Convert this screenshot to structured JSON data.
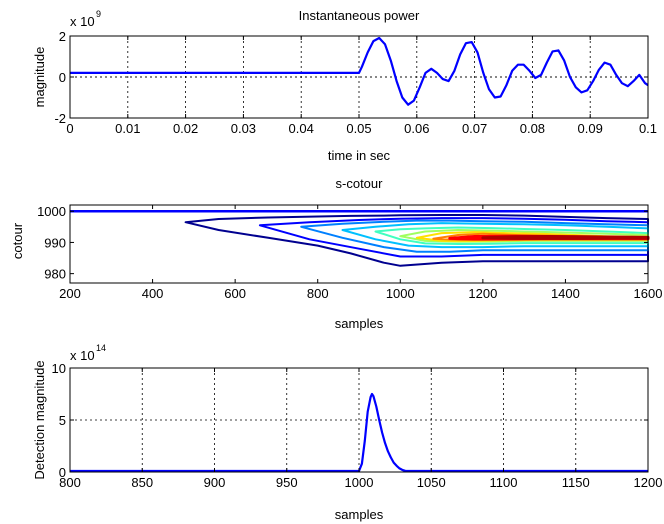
{
  "colors": {
    "signal": "#0000ff",
    "grid": "#000000",
    "axes": "#000000",
    "contour_levels": [
      "#00008f",
      "#0000ff",
      "#0080ff",
      "#00c0ff",
      "#40ffc0",
      "#a0ff60",
      "#ffe000",
      "#ff8000",
      "#ff0000",
      "#b00000"
    ]
  },
  "chart_data": [
    {
      "type": "line",
      "title": "Instantaneous power",
      "xlabel": "time in sec",
      "ylabel": "magnitude",
      "multiplier": {
        "base": "x 10",
        "exp": "9"
      },
      "xlim": [
        0,
        0.1
      ],
      "ylim": [
        -2,
        2
      ],
      "xticks": [
        "0",
        "0.01",
        "0.02",
        "0.03",
        "0.04",
        "0.05",
        "0.06",
        "0.07",
        "0.08",
        "0.09",
        "0.1"
      ],
      "yticks": [
        "-2",
        "0",
        "2"
      ],
      "grid": true,
      "reference_line": 0,
      "series": [
        {
          "x": [
            0,
            0.05,
            0.0505,
            0.0515,
            0.0525,
            0.0535,
            0.0545,
            0.0555,
            0.0565,
            0.0575,
            0.0585,
            0.0595,
            0.0605,
            0.0615,
            0.0625,
            0.0635,
            0.0645,
            0.0655,
            0.0665,
            0.0675,
            0.0685,
            0.0695,
            0.0705,
            0.0715,
            0.0725,
            0.0735,
            0.0745,
            0.0755,
            0.0765,
            0.0775,
            0.0785,
            0.0795,
            0.0805,
            0.0815,
            0.0825,
            0.0835,
            0.0845,
            0.0855,
            0.0865,
            0.0875,
            0.0885,
            0.0895,
            0.0905,
            0.0915,
            0.0925,
            0.0935,
            0.0945,
            0.0955,
            0.0965,
            0.0975,
            0.0985,
            0.0995,
            0.1
          ],
          "y": [
            0.2,
            0.2,
            0.5,
            1.2,
            1.75,
            1.9,
            1.6,
            0.8,
            -0.2,
            -1.0,
            -1.35,
            -1.15,
            -0.5,
            0.2,
            0.4,
            0.2,
            -0.1,
            -0.2,
            0.3,
            1.1,
            1.65,
            1.7,
            1.2,
            0.2,
            -0.6,
            -1.0,
            -0.95,
            -0.4,
            0.3,
            0.6,
            0.6,
            0.3,
            -0.05,
            0.1,
            0.7,
            1.25,
            1.3,
            0.8,
            0.0,
            -0.5,
            -0.75,
            -0.65,
            -0.2,
            0.35,
            0.7,
            0.6,
            0.1,
            -0.3,
            -0.45,
            -0.2,
            0.1,
            -0.3,
            -0.4
          ]
        }
      ]
    },
    {
      "type": "heatmap",
      "title": "s-cotour",
      "xlabel": "samples",
      "ylabel": "cotour",
      "xlim": [
        200,
        1600
      ],
      "ylim": [
        977,
        1002
      ],
      "xticks": [
        "200",
        "400",
        "600",
        "800",
        "1000",
        "1200",
        "1400",
        "1600"
      ],
      "yticks": [
        "980",
        "990",
        "1000"
      ],
      "grid": false,
      "top_line": 1000,
      "contours": [
        {
          "level": 1,
          "x": [
            480,
            560,
            680,
            800,
            880,
            960,
            1000,
            1100,
            1200,
            1300,
            1400,
            1500,
            1600
          ],
          "y_upper": [
            996.5,
            997.5,
            998,
            998.3,
            998.5,
            998.6,
            998.7,
            998.8,
            998.8,
            998.6,
            998.2,
            997.8,
            997.5
          ],
          "y_lower": [
            996.5,
            994,
            991.5,
            989,
            986.5,
            983.5,
            982.5,
            983.5,
            984,
            984,
            984,
            984,
            984
          ]
        },
        {
          "level": 2,
          "x": [
            660,
            780,
            900,
            1000,
            1100,
            1200,
            1300,
            1400,
            1500,
            1600
          ],
          "y_upper": [
            995.5,
            996.5,
            997.2,
            997.6,
            997.8,
            997.8,
            997.6,
            997.3,
            996.8,
            996.5
          ],
          "y_lower": [
            995.5,
            991,
            988,
            985.5,
            985.5,
            986,
            986,
            986,
            986,
            986
          ]
        },
        {
          "level": 3,
          "x": [
            760,
            860,
            960,
            1040,
            1120,
            1200,
            1300,
            1400,
            1500,
            1600
          ],
          "y_upper": [
            995,
            996,
            996.6,
            997,
            997,
            996.8,
            996.6,
            996.2,
            995.8,
            995.5
          ],
          "y_lower": [
            995,
            991.5,
            988.5,
            987,
            987,
            987.5,
            987.5,
            987.5,
            987.5,
            987.5
          ]
        },
        {
          "level": 4,
          "x": [
            860,
            940,
            1020,
            1100,
            1200,
            1300,
            1400,
            1500,
            1600
          ],
          "y_upper": [
            994,
            995,
            995.8,
            996.2,
            996,
            995.8,
            995.5,
            995,
            994.5
          ],
          "y_lower": [
            994,
            991,
            989,
            988.5,
            988.5,
            988.8,
            988.8,
            988.8,
            988.8
          ]
        },
        {
          "level": 5,
          "x": [
            940,
            1000,
            1060,
            1140,
            1220,
            1300,
            1400,
            1500,
            1600
          ],
          "y_upper": [
            993.5,
            994.2,
            994.5,
            994.8,
            994.6,
            994.3,
            994,
            993.5,
            993
          ],
          "y_lower": [
            993.5,
            991,
            989.7,
            989.5,
            989.6,
            989.8,
            989.8,
            989.8,
            989.8
          ]
        },
        {
          "level": 6,
          "x": [
            1000,
            1060,
            1140,
            1220,
            1300,
            1400,
            1500,
            1600
          ],
          "y_upper": [
            992,
            993.5,
            994,
            993.8,
            993.5,
            993.2,
            992.8,
            992.4
          ],
          "y_lower": [
            992,
            990.5,
            990.2,
            990.3,
            990.5,
            990.5,
            990.5,
            990.5
          ]
        },
        {
          "level": 7,
          "x": [
            1040,
            1100,
            1180,
            1260,
            1340,
            1420,
            1500,
            1600
          ],
          "y_upper": [
            991.5,
            993,
            993.3,
            993,
            992.8,
            992.4,
            992,
            991.8
          ],
          "y_lower": [
            991.5,
            990.5,
            990.5,
            990.7,
            990.8,
            990.8,
            990.8,
            990.8
          ]
        },
        {
          "level": 8,
          "x": [
            1080,
            1140,
            1200,
            1280,
            1360,
            1440,
            1520,
            1600
          ],
          "y_upper": [
            991.2,
            992.4,
            992.8,
            992.4,
            992.2,
            992,
            991.8,
            991.6
          ],
          "y_lower": [
            991.2,
            990.8,
            990.8,
            990.9,
            991,
            991,
            991,
            991
          ]
        },
        {
          "level": 9,
          "x": [
            1120,
            1180,
            1260,
            1340,
            1420,
            1500,
            1600
          ],
          "y_upper": [
            991.3,
            991.9,
            992,
            991.9,
            991.7,
            991.6,
            991.5
          ],
          "y_lower": [
            991.3,
            991.1,
            991.1,
            991.2,
            991.2,
            991.2,
            991.2
          ]
        },
        {
          "level": 10,
          "x": [
            1200,
            1280,
            1360,
            1440,
            1520,
            1600
          ],
          "y_upper": [
            991.5,
            991.8,
            991.9,
            991.8,
            991.7,
            991.6
          ],
          "y_lower": [
            991.5,
            991.3,
            991.3,
            991.3,
            991.4,
            991.4
          ]
        }
      ]
    },
    {
      "type": "line",
      "title": "",
      "xlabel": "samples",
      "ylabel": "Detection magnitude",
      "multiplier": {
        "base": "x 10",
        "exp": "14"
      },
      "xlim": [
        800,
        1200
      ],
      "ylim": [
        0,
        10
      ],
      "xticks": [
        "800",
        "850",
        "900",
        "950",
        "1000",
        "1050",
        "1100",
        "1150",
        "1200"
      ],
      "yticks": [
        "0",
        "5",
        "10"
      ],
      "grid": true,
      "series": [
        {
          "x": [
            800,
            1000,
            1002,
            1004,
            1006,
            1008,
            1009,
            1010,
            1012,
            1014,
            1016,
            1018,
            1020,
            1022,
            1024,
            1026,
            1028,
            1030,
            1032,
            1034,
            1200
          ],
          "y": [
            0.1,
            0.1,
            0.8,
            3.0,
            5.8,
            7.2,
            7.5,
            7.3,
            6.3,
            5.0,
            3.8,
            2.8,
            2.0,
            1.4,
            0.9,
            0.6,
            0.35,
            0.2,
            0.12,
            0.1,
            0.1
          ]
        }
      ]
    }
  ]
}
